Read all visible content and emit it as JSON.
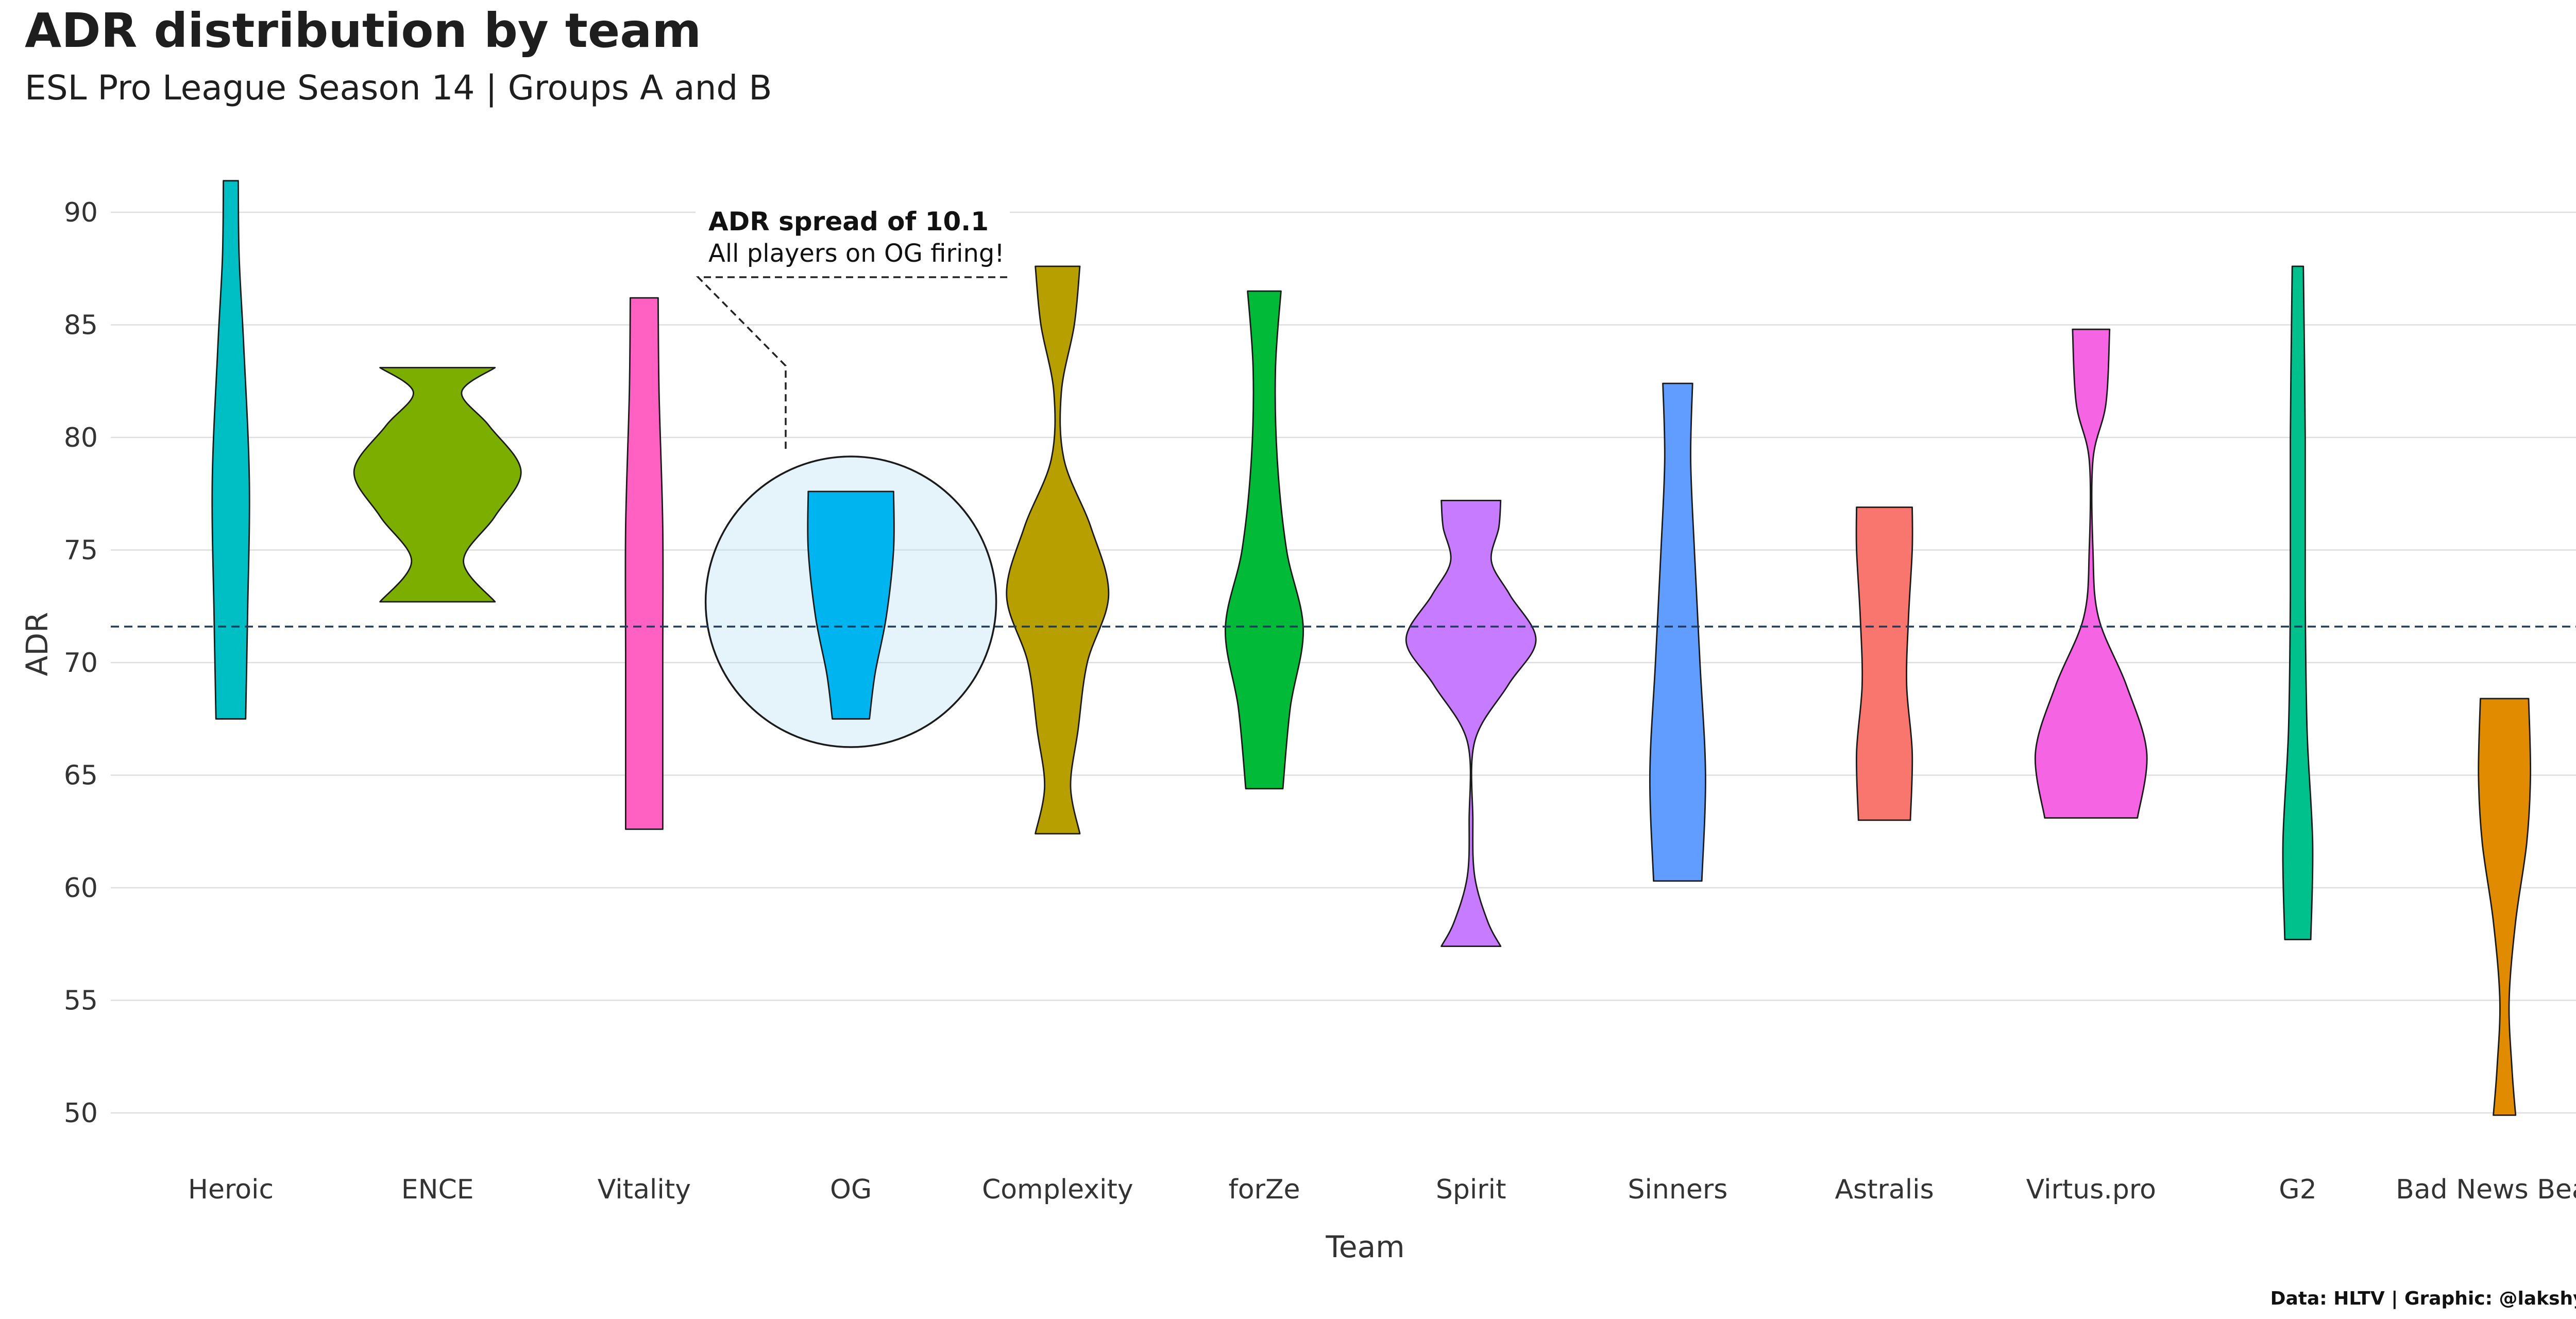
{
  "title": "ADR distribution by team",
  "subtitle": "ESL Pro League Season 14 | Groups A and B",
  "caption": "Data: HLTV | Graphic: @lakshyaag",
  "chart_data": {
    "type": "violin",
    "xlabel": "Team",
    "ylabel": "ADR",
    "ylim": [
      48,
      93
    ],
    "yticks": [
      50,
      55,
      60,
      65,
      70,
      75,
      80,
      85,
      90
    ],
    "grid": true,
    "reference_line": {
      "value": 71.6,
      "style": "dashed",
      "color": "#1f3a5a"
    },
    "series": [
      {
        "name": "Heroic",
        "color": "#00BFC4",
        "min": 67.5,
        "max": 91.4,
        "profile": [
          [
            67.5,
            0.16
          ],
          [
            72,
            0.18
          ],
          [
            78,
            0.2
          ],
          [
            84,
            0.14
          ],
          [
            88,
            0.09
          ],
          [
            91.4,
            0.08
          ]
        ]
      },
      {
        "name": "ENCE",
        "color": "#7CAE00",
        "min": 72.7,
        "max": 83.1,
        "profile": [
          [
            72.7,
            0.62
          ],
          [
            74.5,
            0.28
          ],
          [
            76.5,
            0.62
          ],
          [
            78.5,
            0.9
          ],
          [
            80.5,
            0.56
          ],
          [
            82,
            0.26
          ],
          [
            83.1,
            0.62
          ]
        ]
      },
      {
        "name": "Vitality",
        "color": "#FF61C3",
        "min": 62.6,
        "max": 86.2,
        "profile": [
          [
            62.6,
            0.2
          ],
          [
            70,
            0.2
          ],
          [
            76,
            0.2
          ],
          [
            82,
            0.16
          ],
          [
            86.2,
            0.15
          ]
        ]
      },
      {
        "name": "OG",
        "color": "#00B4F0",
        "min": 67.5,
        "max": 77.6,
        "profile": [
          [
            67.5,
            0.2
          ],
          [
            69.5,
            0.26
          ],
          [
            72,
            0.38
          ],
          [
            75,
            0.46
          ],
          [
            77.6,
            0.46
          ]
        ]
      },
      {
        "name": "Complexity",
        "color": "#B79F00",
        "min": 62.4,
        "max": 87.6,
        "profile": [
          [
            62.4,
            0.24
          ],
          [
            64.5,
            0.14
          ],
          [
            67,
            0.22
          ],
          [
            70,
            0.32
          ],
          [
            73,
            0.55
          ],
          [
            76,
            0.36
          ],
          [
            79,
            0.07
          ],
          [
            82,
            0.04
          ],
          [
            85,
            0.18
          ],
          [
            87.6,
            0.24
          ]
        ]
      },
      {
        "name": "forZe",
        "color": "#00BA38",
        "min": 64.4,
        "max": 86.5,
        "profile": [
          [
            64.4,
            0.2
          ],
          [
            68,
            0.28
          ],
          [
            71.5,
            0.42
          ],
          [
            75,
            0.24
          ],
          [
            79,
            0.14
          ],
          [
            83,
            0.12
          ],
          [
            86.5,
            0.18
          ]
        ]
      },
      {
        "name": "Spirit",
        "color": "#C77CFF",
        "min": 57.4,
        "max": 77.2,
        "profile": [
          [
            57.4,
            0.32
          ],
          [
            58.5,
            0.18
          ],
          [
            60.5,
            0.04
          ],
          [
            63,
            0.02
          ],
          [
            66.5,
            0.04
          ],
          [
            69,
            0.4
          ],
          [
            71,
            0.7
          ],
          [
            73,
            0.42
          ],
          [
            74.5,
            0.22
          ],
          [
            76,
            0.3
          ],
          [
            77.2,
            0.32
          ]
        ]
      },
      {
        "name": "Sinners",
        "color": "#619CFF",
        "min": 60.3,
        "max": 82.4,
        "profile": [
          [
            60.3,
            0.26
          ],
          [
            65,
            0.3
          ],
          [
            70,
            0.24
          ],
          [
            75,
            0.18
          ],
          [
            79,
            0.14
          ],
          [
            82.4,
            0.16
          ]
        ]
      },
      {
        "name": "Astralis",
        "color": "#F8766D",
        "min": 63,
        "max": 76.9,
        "profile": [
          [
            63,
            0.28
          ],
          [
            66,
            0.3
          ],
          [
            69,
            0.24
          ],
          [
            72,
            0.26
          ],
          [
            75,
            0.3
          ],
          [
            76.9,
            0.3
          ]
        ]
      },
      {
        "name": "Virtus.pro",
        "color": "#F564E3",
        "min": 63.1,
        "max": 84.8,
        "profile": [
          [
            63.1,
            0.5
          ],
          [
            66,
            0.6
          ],
          [
            69,
            0.38
          ],
          [
            72,
            0.08
          ],
          [
            75,
            0.02
          ],
          [
            79,
            0.02
          ],
          [
            81.5,
            0.16
          ],
          [
            84.8,
            0.2
          ]
        ]
      },
      {
        "name": "G2",
        "color": "#00C08B",
        "min": 57.7,
        "max": 87.6,
        "profile": [
          [
            57.7,
            0.14
          ],
          [
            62,
            0.16
          ],
          [
            67,
            0.1
          ],
          [
            73,
            0.08
          ],
          [
            80,
            0.08
          ],
          [
            87.6,
            0.06
          ]
        ]
      },
      {
        "name": "Bad News Bears",
        "color": "#E08B00",
        "min": 49.9,
        "max": 68.4,
        "profile": [
          [
            49.9,
            0.12
          ],
          [
            52,
            0.08
          ],
          [
            55,
            0.05
          ],
          [
            58.5,
            0.12
          ],
          [
            62,
            0.24
          ],
          [
            65,
            0.28
          ],
          [
            68.4,
            0.26
          ]
        ]
      }
    ],
    "annotation": {
      "title": "ADR spread of 10.1",
      "text": "All players on OG firing!",
      "target": "OG"
    }
  }
}
